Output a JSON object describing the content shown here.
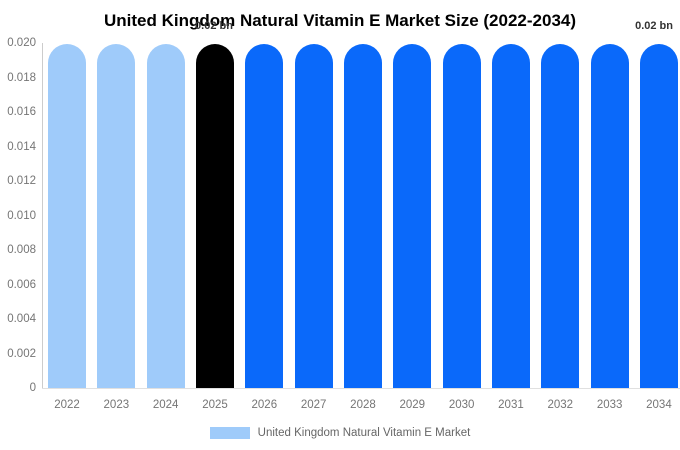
{
  "chart_data": {
    "type": "bar",
    "title": "United Kingdom Natural Vitamin E Market Size (2022-2034)",
    "xlabel": "",
    "ylabel": "",
    "unit": "bn",
    "ylim": [
      0,
      0.02
    ],
    "grid": false,
    "legend_position": "bottom-center",
    "categories": [
      "2022",
      "2023",
      "2024",
      "2025",
      "2026",
      "2027",
      "2028",
      "2029",
      "2030",
      "2031",
      "2032",
      "2033",
      "2034"
    ],
    "values": [
      0.02,
      0.02,
      0.02,
      0.02,
      0.02,
      0.02,
      0.02,
      0.02,
      0.02,
      0.02,
      0.02,
      0.02,
      0.02
    ],
    "bar_colors": [
      "#9fcbfa",
      "#9fcbfa",
      "#9fcbfa",
      "#000000",
      "#0a69fa",
      "#0a69fa",
      "#0a69fa",
      "#0a69fa",
      "#0a69fa",
      "#0a69fa",
      "#0a69fa",
      "#0a69fa",
      "#0a69fa"
    ],
    "ytick_labels": [
      "0.020",
      "0.018",
      "0.016",
      "0.014",
      "0.012",
      "0.010",
      "0.008",
      "0.006",
      "0.004",
      "0.002",
      "0"
    ],
    "annotations": [
      {
        "text": "0.02 bn",
        "target": "2025"
      },
      {
        "text": "0.02 bn",
        "target": "2034"
      }
    ],
    "legend": [
      {
        "label": "United Kingdom Natural Vitamin E Market",
        "color": "#9fcbfa"
      }
    ],
    "colors": {
      "historical_bars": "#9fcbfa",
      "current_year_bar": "#000000",
      "forecast_bars": "#0a69fa",
      "axis_text": "#757575",
      "annotation_text": "#333333",
      "title_text": "#000000"
    }
  }
}
